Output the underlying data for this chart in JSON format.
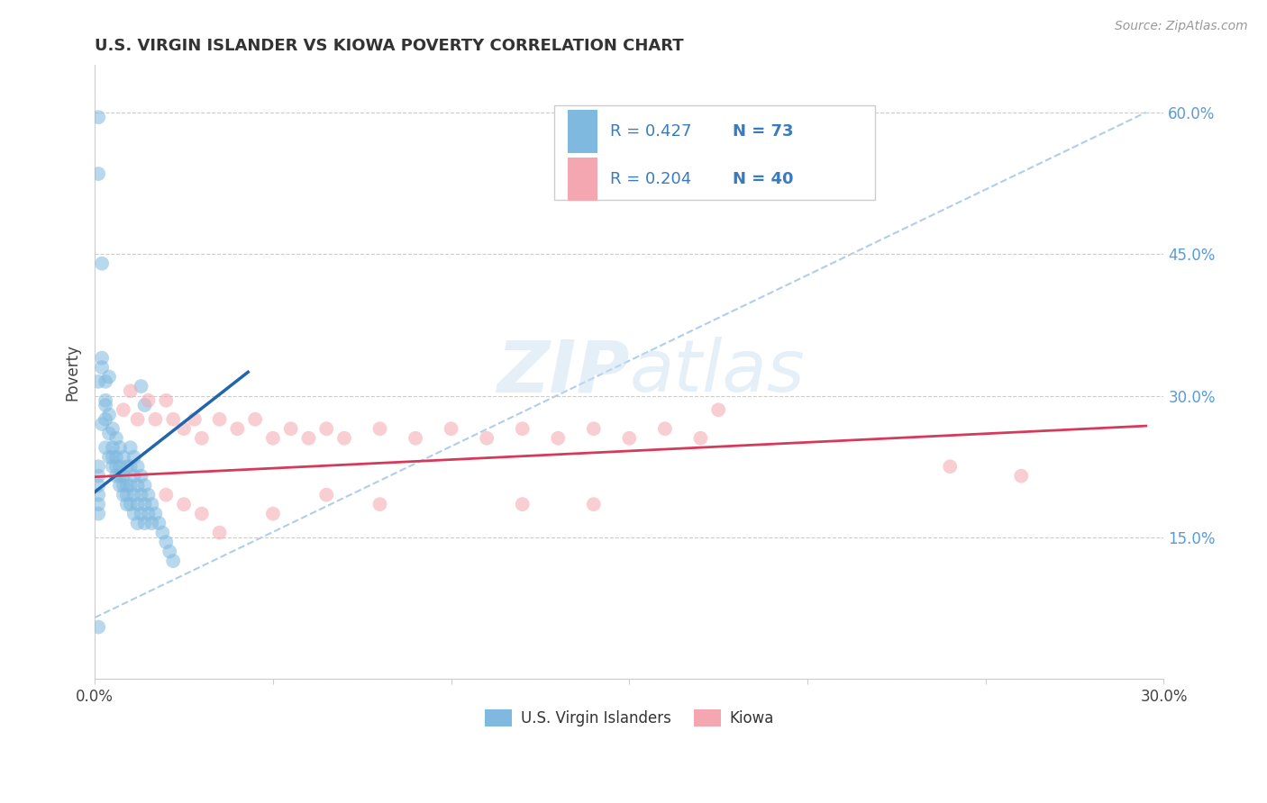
{
  "title": "U.S. VIRGIN ISLANDER VS KIOWA POVERTY CORRELATION CHART",
  "source": "Source: ZipAtlas.com",
  "ylabel": "Poverty",
  "xlim": [
    0.0,
    0.3
  ],
  "ylim": [
    0.0,
    0.65
  ],
  "ytick_labels_right": [
    "15.0%",
    "30.0%",
    "45.0%",
    "60.0%"
  ],
  "ytick_positions_right": [
    0.15,
    0.3,
    0.45,
    0.6
  ],
  "blue_color": "#7fb9e0",
  "pink_color": "#f4a7b0",
  "blue_line_color": "#2166ac",
  "pink_line_color": "#d63a5a",
  "dashed_line_color": "#a8c8e8",
  "watermark_zip": "ZIP",
  "watermark_atlas": "atlas",
  "background_color": "#ffffff",
  "legend_text_color": "#3a7bbf",
  "right_tick_color": "#5b9bd5",
  "blue_scatter": [
    [
      0.001,
      0.595
    ],
    [
      0.001,
      0.535
    ],
    [
      0.002,
      0.44
    ],
    [
      0.002,
      0.34
    ],
    [
      0.003,
      0.315
    ],
    [
      0.003,
      0.29
    ],
    [
      0.001,
      0.315
    ],
    [
      0.004,
      0.32
    ],
    [
      0.002,
      0.27
    ],
    [
      0.001,
      0.055
    ],
    [
      0.002,
      0.33
    ],
    [
      0.003,
      0.275
    ],
    [
      0.004,
      0.26
    ],
    [
      0.003,
      0.245
    ],
    [
      0.004,
      0.235
    ],
    [
      0.003,
      0.295
    ],
    [
      0.004,
      0.28
    ],
    [
      0.005,
      0.265
    ],
    [
      0.005,
      0.245
    ],
    [
      0.005,
      0.235
    ],
    [
      0.005,
      0.225
    ],
    [
      0.006,
      0.255
    ],
    [
      0.006,
      0.235
    ],
    [
      0.006,
      0.225
    ],
    [
      0.006,
      0.215
    ],
    [
      0.007,
      0.245
    ],
    [
      0.007,
      0.225
    ],
    [
      0.007,
      0.215
    ],
    [
      0.007,
      0.205
    ],
    [
      0.008,
      0.235
    ],
    [
      0.008,
      0.215
    ],
    [
      0.008,
      0.205
    ],
    [
      0.008,
      0.195
    ],
    [
      0.009,
      0.225
    ],
    [
      0.009,
      0.205
    ],
    [
      0.009,
      0.195
    ],
    [
      0.009,
      0.185
    ],
    [
      0.01,
      0.245
    ],
    [
      0.01,
      0.225
    ],
    [
      0.01,
      0.205
    ],
    [
      0.01,
      0.185
    ],
    [
      0.011,
      0.235
    ],
    [
      0.011,
      0.215
    ],
    [
      0.011,
      0.195
    ],
    [
      0.011,
      0.175
    ],
    [
      0.012,
      0.225
    ],
    [
      0.012,
      0.205
    ],
    [
      0.012,
      0.185
    ],
    [
      0.012,
      0.165
    ],
    [
      0.013,
      0.215
    ],
    [
      0.013,
      0.195
    ],
    [
      0.013,
      0.175
    ],
    [
      0.014,
      0.205
    ],
    [
      0.014,
      0.185
    ],
    [
      0.014,
      0.165
    ],
    [
      0.015,
      0.195
    ],
    [
      0.015,
      0.175
    ],
    [
      0.016,
      0.185
    ],
    [
      0.016,
      0.165
    ],
    [
      0.017,
      0.175
    ],
    [
      0.018,
      0.165
    ],
    [
      0.019,
      0.155
    ],
    [
      0.02,
      0.145
    ],
    [
      0.021,
      0.135
    ],
    [
      0.022,
      0.125
    ],
    [
      0.013,
      0.31
    ],
    [
      0.014,
      0.29
    ],
    [
      0.001,
      0.225
    ],
    [
      0.001,
      0.215
    ],
    [
      0.001,
      0.205
    ],
    [
      0.001,
      0.195
    ],
    [
      0.001,
      0.185
    ],
    [
      0.001,
      0.175
    ]
  ],
  "pink_scatter": [
    [
      0.008,
      0.285
    ],
    [
      0.01,
      0.305
    ],
    [
      0.012,
      0.275
    ],
    [
      0.015,
      0.295
    ],
    [
      0.017,
      0.275
    ],
    [
      0.02,
      0.295
    ],
    [
      0.022,
      0.275
    ],
    [
      0.025,
      0.265
    ],
    [
      0.028,
      0.275
    ],
    [
      0.03,
      0.255
    ],
    [
      0.035,
      0.275
    ],
    [
      0.04,
      0.265
    ],
    [
      0.045,
      0.275
    ],
    [
      0.05,
      0.255
    ],
    [
      0.055,
      0.265
    ],
    [
      0.06,
      0.255
    ],
    [
      0.065,
      0.265
    ],
    [
      0.07,
      0.255
    ],
    [
      0.08,
      0.265
    ],
    [
      0.09,
      0.255
    ],
    [
      0.1,
      0.265
    ],
    [
      0.11,
      0.255
    ],
    [
      0.12,
      0.265
    ],
    [
      0.13,
      0.255
    ],
    [
      0.14,
      0.265
    ],
    [
      0.15,
      0.255
    ],
    [
      0.16,
      0.265
    ],
    [
      0.17,
      0.255
    ],
    [
      0.175,
      0.285
    ],
    [
      0.02,
      0.195
    ],
    [
      0.025,
      0.185
    ],
    [
      0.03,
      0.175
    ],
    [
      0.035,
      0.155
    ],
    [
      0.05,
      0.175
    ],
    [
      0.065,
      0.195
    ],
    [
      0.08,
      0.185
    ],
    [
      0.12,
      0.185
    ],
    [
      0.14,
      0.185
    ],
    [
      0.24,
      0.225
    ],
    [
      0.26,
      0.215
    ]
  ],
  "blue_line_x": [
    0.0,
    0.043
  ],
  "blue_line_y": [
    0.198,
    0.325
  ],
  "pink_line_x": [
    0.0,
    0.295
  ],
  "pink_line_y": [
    0.214,
    0.268
  ],
  "dashed_line_x": [
    0.0,
    0.295
  ],
  "dashed_line_y": [
    0.065,
    0.6
  ]
}
